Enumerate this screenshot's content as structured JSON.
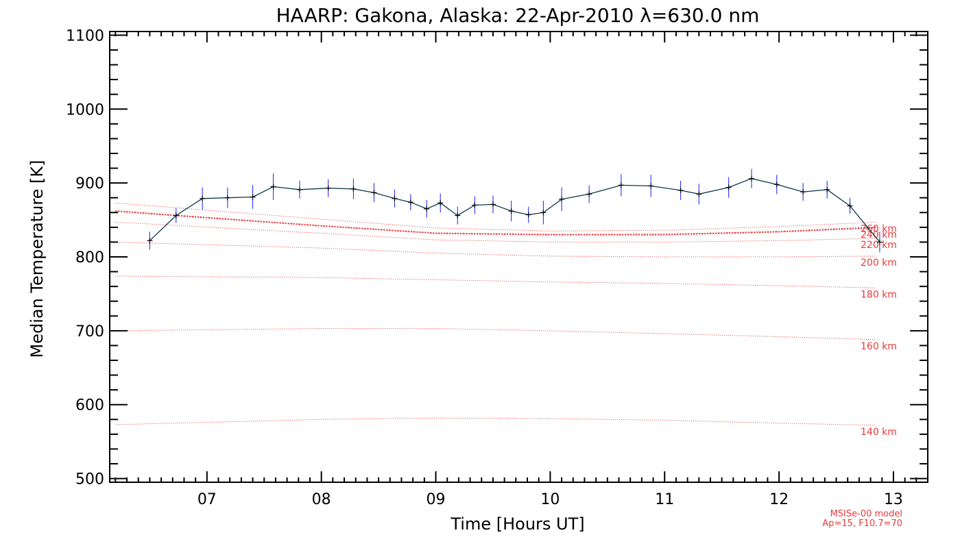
{
  "chart_data": {
    "type": "line",
    "title": "HAARP: Gakona,  Alaska: 22-Apr-2010 λ=630.0 nm",
    "xlabel": "Time [Hours UT]",
    "ylabel": "Median Temperature [K]",
    "xlim": [
      6.15,
      13.3
    ],
    "ylim": [
      495,
      1105
    ],
    "x_ticks": [
      7,
      8,
      9,
      10,
      11,
      12,
      13
    ],
    "x_tick_labels": [
      "07",
      "08",
      "09",
      "10",
      "11",
      "12",
      "13"
    ],
    "y_ticks": [
      500,
      600,
      700,
      800,
      900,
      1000,
      1100
    ],
    "y_tick_labels": [
      "500",
      "600",
      "700",
      "800",
      "900",
      "1000",
      "1100"
    ],
    "measured": {
      "line_color": "#0b3a4a",
      "errorbar_color": "#1a1aff",
      "marker": "plus",
      "x": [
        6.5,
        6.73,
        6.96,
        7.18,
        7.4,
        7.58,
        7.81,
        8.06,
        8.28,
        8.46,
        8.64,
        8.78,
        8.92,
        9.04,
        9.19,
        9.34,
        9.5,
        9.66,
        9.81,
        9.94,
        10.1,
        10.34,
        10.62,
        10.88,
        11.14,
        11.3,
        11.56,
        11.76,
        11.98,
        12.21,
        12.42,
        12.62,
        12.88
      ],
      "y": [
        822,
        856,
        879,
        880,
        881,
        895,
        891,
        893,
        892,
        887,
        879,
        874,
        865,
        873,
        856,
        870,
        871,
        862,
        857,
        860,
        878,
        885,
        897,
        896,
        890,
        885,
        894,
        906,
        898,
        888,
        891,
        869,
        820
      ],
      "err": [
        12,
        10,
        15,
        14,
        16,
        18,
        12,
        12,
        14,
        13,
        12,
        11,
        12,
        13,
        12,
        12,
        12,
        14,
        11,
        16,
        16,
        12,
        15,
        15,
        13,
        14,
        14,
        13,
        13,
        12,
        12,
        11,
        14
      ]
    },
    "model_series": [
      {
        "name": "140 km",
        "color": "#e8393c",
        "x": [
          6.2,
          8.0,
          9.0,
          10.0,
          11.0,
          12.0,
          12.85
        ],
        "y": [
          573,
          580,
          582,
          581,
          579,
          575,
          572
        ]
      },
      {
        "name": "160 km",
        "color": "#e8393c",
        "x": [
          6.2,
          8.0,
          9.0,
          10.0,
          11.0,
          12.0,
          12.85
        ],
        "y": [
          700,
          703,
          703,
          700,
          696,
          692,
          688
        ]
      },
      {
        "name": "180 km",
        "color": "#e8393c",
        "x": [
          6.2,
          8.0,
          9.0,
          10.0,
          11.0,
          12.0,
          12.85
        ],
        "y": [
          774,
          772,
          769,
          766,
          764,
          761,
          758
        ]
      },
      {
        "name": "200 km",
        "color": "#e8393c",
        "x": [
          6.2,
          8.0,
          9.0,
          10.0,
          11.0,
          12.0,
          12.85
        ],
        "y": [
          820,
          812,
          805,
          801,
          800,
          800,
          801
        ]
      },
      {
        "name": "220 km",
        "color": "#e8393c",
        "x": [
          6.2,
          8.0,
          9.0,
          10.0,
          11.0,
          12.0,
          12.85
        ],
        "y": [
          847,
          832,
          823,
          820,
          820,
          822,
          825
        ]
      },
      {
        "name": "240 km",
        "color": "#e8393c",
        "x": [
          6.2,
          8.0,
          9.0,
          10.0,
          11.0,
          12.0,
          12.85
        ],
        "y": [
          862,
          842,
          832,
          830,
          831,
          834,
          839
        ]
      },
      {
        "name": "260 km",
        "color": "#e8393c",
        "x": [
          6.2,
          8.0,
          9.0,
          10.0,
          11.0,
          12.0,
          12.85
        ],
        "y": [
          873,
          851,
          839,
          835,
          836,
          841,
          847
        ]
      }
    ],
    "highlight_series": {
      "name": "",
      "color": "#e8393c",
      "x": [
        6.2,
        7.0,
        8.0,
        9.0,
        10.0,
        11.0,
        12.0,
        12.85
      ],
      "y": [
        862,
        853,
        842,
        832,
        830,
        830,
        834,
        840
      ]
    },
    "annotations": [
      "MSISe-00 model",
      "Ap=15, F10.7=70"
    ]
  }
}
